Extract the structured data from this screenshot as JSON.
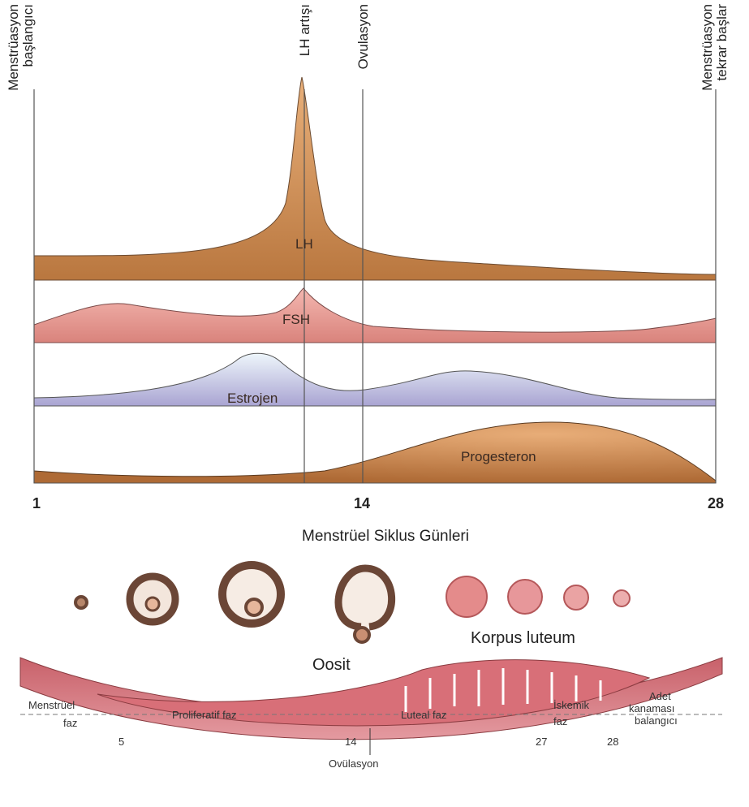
{
  "top_labels": {
    "start": [
      "Menstrüasyon",
      "başlangıcı"
    ],
    "lh_surge": "LH artışı",
    "ovulation": "Ovulasyon",
    "restart": [
      "Menstrüasyon",
      "tekrar başlar"
    ]
  },
  "hormones": [
    "LH",
    "FSH",
    "Estrojen",
    "Progesteron"
  ],
  "day_labels": [
    "1",
    "14",
    "28"
  ],
  "axis_title": "Menstrüel Siklus Günleri",
  "ovary_labels": {
    "oocyte": "Oosit",
    "corpus_luteum": "Korpus luteum"
  },
  "phases": {
    "menstrual": [
      "Menstrüel",
      "faz"
    ],
    "day5": "5",
    "proliferative": "Proliferatif faz",
    "day14": "14",
    "luteal": "Luteal faz",
    "ischemic": [
      "İskemik",
      "faz"
    ],
    "day27": "27",
    "day28": "28",
    "bleeding": [
      "Adet",
      "kanaması",
      "balangıcı"
    ],
    "ovulation": "Ovülasyon"
  }
}
